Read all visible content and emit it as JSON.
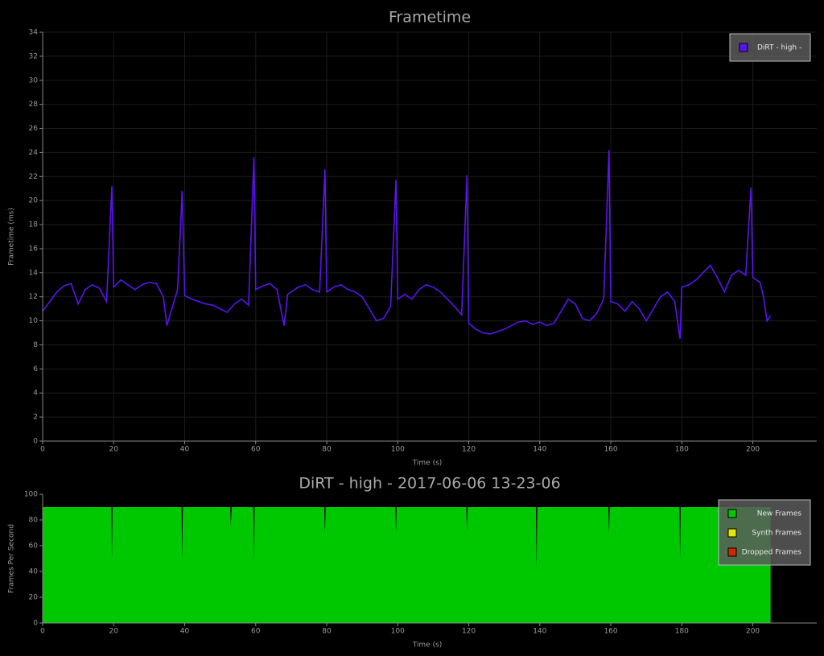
{
  "chart_data": [
    {
      "type": "line",
      "title": "Frametime",
      "xlabel": "Time (s)",
      "ylabel": "Frametime (ms)",
      "xlim": [
        0,
        218
      ],
      "xticks": [
        0,
        20,
        40,
        60,
        80,
        100,
        120,
        140,
        160,
        180,
        200
      ],
      "ylim": [
        0,
        34
      ],
      "yticks": [
        0,
        2,
        4,
        6,
        8,
        10,
        12,
        14,
        16,
        18,
        20,
        22,
        24,
        26,
        28,
        30,
        32,
        34
      ],
      "grid": true,
      "legend": "upper right",
      "x": [
        0,
        2,
        4,
        6,
        8,
        10,
        12,
        14,
        16,
        18,
        19.5,
        20,
        22,
        24,
        26,
        28,
        30,
        32,
        34,
        35,
        36,
        38,
        39.3,
        40,
        42,
        44,
        46,
        48,
        50,
        52,
        54,
        56,
        58,
        59.5,
        60,
        62,
        64,
        66,
        68,
        69,
        72,
        74,
        76,
        78,
        79.5,
        80,
        82,
        84,
        86,
        88,
        90,
        92,
        94,
        96,
        98,
        99.5,
        100,
        102,
        104,
        106,
        108,
        110,
        112,
        114,
        116,
        118,
        119.5,
        120,
        122,
        124,
        126,
        128,
        130,
        132,
        134,
        136,
        138,
        140,
        142,
        144,
        146,
        148,
        150,
        152,
        154,
        156,
        158,
        159.5,
        160,
        162,
        164,
        166,
        168,
        170,
        172,
        174,
        176,
        178,
        179.5,
        180,
        182,
        184,
        186,
        188,
        190,
        192,
        194,
        196,
        198,
        199.5,
        200,
        202,
        203,
        204,
        205
      ],
      "series": [
        {
          "name": "DiRT - high -",
          "color": "#5a14f0",
          "values": [
            10.8,
            11.6,
            12.4,
            12.9,
            13.1,
            11.4,
            12.6,
            13.0,
            12.7,
            11.6,
            21.2,
            12.8,
            13.4,
            13.0,
            12.6,
            13.0,
            13.2,
            13.1,
            12.0,
            9.6,
            10.6,
            12.6,
            20.8,
            12.1,
            11.8,
            11.6,
            11.4,
            11.3,
            11.0,
            10.7,
            11.4,
            11.8,
            11.3,
            23.6,
            12.6,
            12.9,
            13.1,
            12.6,
            9.6,
            12.2,
            12.8,
            13.0,
            12.6,
            12.4,
            22.6,
            12.4,
            12.8,
            13.0,
            12.6,
            12.4,
            12.0,
            11.0,
            10.0,
            10.2,
            11.2,
            21.7,
            11.8,
            12.2,
            11.8,
            12.6,
            13.0,
            12.8,
            12.4,
            11.8,
            11.2,
            10.5,
            22.1,
            9.8,
            9.3,
            9.0,
            8.9,
            9.1,
            9.3,
            9.6,
            9.9,
            10.0,
            9.7,
            9.9,
            9.6,
            9.8,
            10.8,
            11.8,
            11.4,
            10.2,
            10.0,
            10.6,
            11.8,
            24.2,
            11.6,
            11.4,
            10.8,
            11.6,
            11.0,
            10.0,
            11.0,
            12.0,
            12.4,
            11.6,
            8.5,
            12.8,
            13.0,
            13.4,
            14.0,
            14.6,
            13.6,
            12.4,
            13.8,
            14.2,
            13.8,
            21.1,
            13.6,
            13.2,
            12.0,
            10.0,
            10.4
          ]
        }
      ]
    },
    {
      "type": "area",
      "title": "DiRT - high - 2017-06-06 13-23-06",
      "xlabel": "Time (s)",
      "ylabel": "Frames Per Second",
      "xlim": [
        0,
        218
      ],
      "xticks": [
        0,
        20,
        40,
        60,
        80,
        100,
        120,
        140,
        160,
        180,
        200
      ],
      "ylim": [
        0,
        100
      ],
      "yticks": [
        0,
        20,
        40,
        60,
        80,
        100
      ],
      "stacked": true,
      "legend": "upper right",
      "x": [
        0,
        19.3,
        19.5,
        19.7,
        39.1,
        39.3,
        39.5,
        52.8,
        53,
        53.2,
        59.3,
        59.5,
        59.7,
        79.3,
        79.5,
        79.7,
        99.3,
        99.5,
        99.7,
        119.3,
        119.5,
        119.7,
        138.9,
        139.1,
        139.3,
        159.3,
        159.5,
        159.7,
        179.3,
        179.5,
        179.7,
        205
      ],
      "series": [
        {
          "name": "New Frames",
          "color": "#00c800",
          "values": [
            90,
            90,
            50,
            90,
            90,
            50,
            90,
            90,
            75,
            90,
            90,
            48,
            90,
            90,
            70,
            90,
            90,
            70,
            90,
            90,
            70,
            90,
            90,
            42,
            90,
            90,
            70,
            90,
            90,
            50,
            90,
            90
          ]
        },
        {
          "name": "Synth Frames",
          "color": "#e6e600",
          "values": [
            0,
            0,
            0,
            0,
            0,
            0,
            0,
            0,
            0,
            0,
            0,
            0,
            0,
            0,
            0,
            0,
            0,
            0,
            0,
            0,
            0,
            0,
            0,
            0,
            0,
            0,
            0,
            0,
            0,
            0,
            0,
            0
          ]
        },
        {
          "name": "Dropped Frames",
          "color": "#d22800",
          "values": [
            0,
            0,
            0,
            0,
            0,
            0,
            0,
            0,
            0,
            0,
            0,
            0,
            0,
            0,
            0,
            0,
            0,
            0,
            0,
            0,
            0,
            0,
            0,
            0,
            0,
            0,
            0,
            0,
            0,
            0,
            0,
            0
          ]
        }
      ]
    }
  ]
}
